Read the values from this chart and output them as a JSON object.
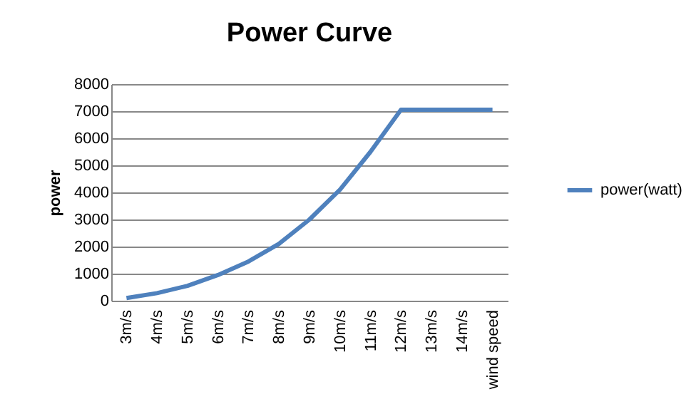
{
  "chart_data": {
    "type": "line",
    "title": "Power Curve",
    "ylabel": "power",
    "categories": [
      "3m/s",
      "4m/s",
      "5m/s",
      "6m/s",
      "7m/s",
      "8m/s",
      "9m/s",
      "10m/s",
      "11m/s",
      "12m/s",
      "13m/s",
      "14m/s",
      "wind speed"
    ],
    "series": [
      {
        "name": "power(watt)",
        "color": "#4f81bd",
        "values": [
          100,
          280,
          550,
          950,
          1450,
          2100,
          3000,
          4100,
          5500,
          7050,
          7050,
          7050,
          7050
        ]
      }
    ],
    "ylim": [
      0,
      8000
    ],
    "yticks": [
      0,
      1000,
      2000,
      3000,
      4000,
      5000,
      6000,
      7000,
      8000
    ],
    "grid": "y",
    "legend": "right",
    "marker": "none",
    "line_style": "solid"
  }
}
